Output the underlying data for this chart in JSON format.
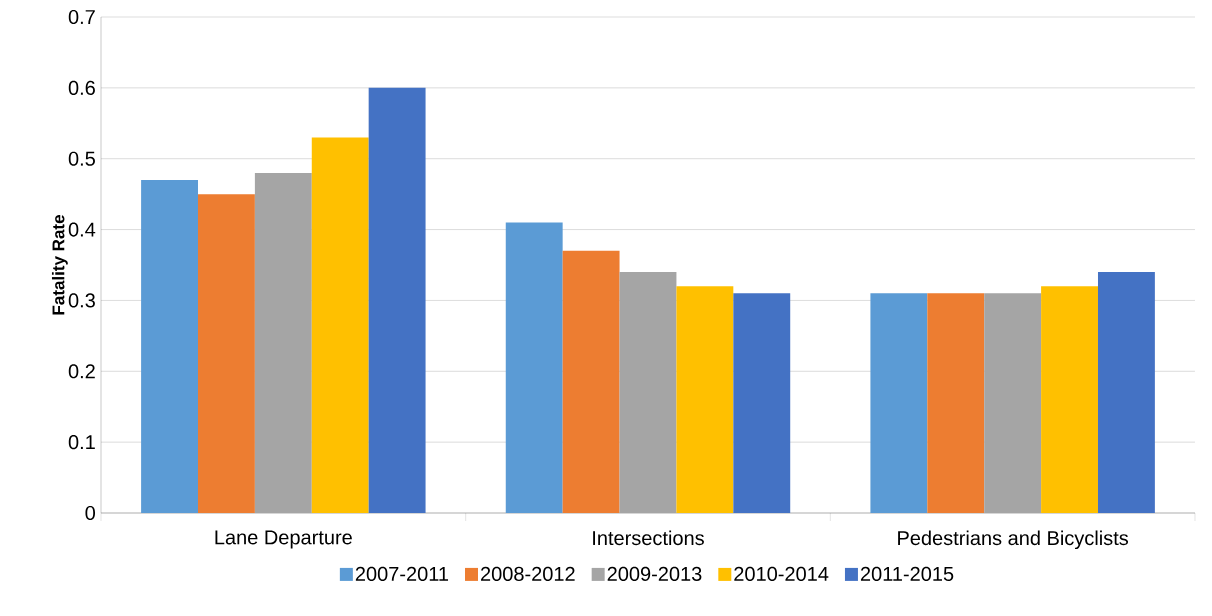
{
  "chart_data": {
    "type": "bar",
    "ylabel": "Fatality Rate",
    "categories": [
      "Lane Departure",
      "Intersections",
      "Pedestrians and Bicyclists"
    ],
    "series": [
      {
        "name": "2007-2011",
        "color": "#5b9bd5",
        "values": [
          0.47,
          0.41,
          0.31
        ]
      },
      {
        "name": "2008-2012",
        "color": "#ed7d31",
        "values": [
          0.45,
          0.37,
          0.31
        ]
      },
      {
        "name": "2009-2013",
        "color": "#a5a5a5",
        "values": [
          0.48,
          0.34,
          0.31
        ]
      },
      {
        "name": "2010-2014",
        "color": "#ffc000",
        "values": [
          0.53,
          0.32,
          0.32
        ]
      },
      {
        "name": "2011-2015",
        "color": "#4472c4",
        "values": [
          0.6,
          0.31,
          0.34
        ]
      }
    ],
    "ylim": [
      0,
      0.7
    ],
    "yticks": [
      0,
      0.1,
      0.2,
      0.3,
      0.4,
      0.5,
      0.6,
      0.7
    ],
    "grid": "y",
    "legend": "bottom"
  }
}
